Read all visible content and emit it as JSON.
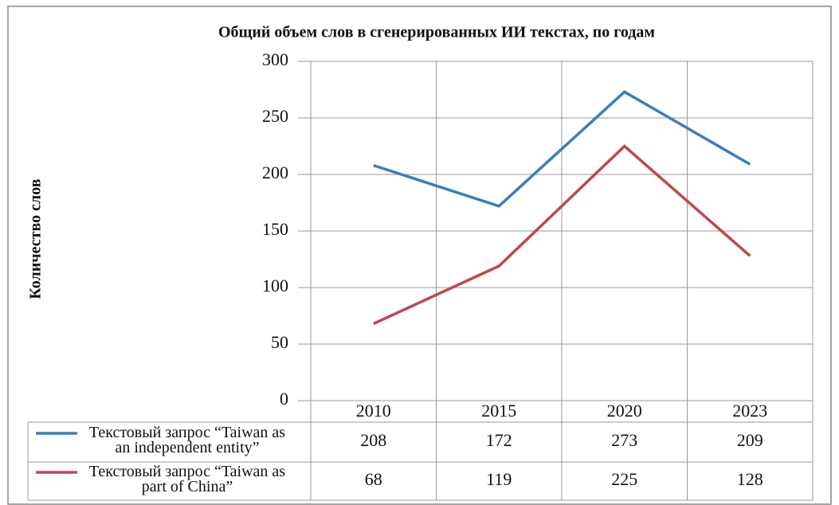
{
  "chart_data": {
    "type": "line",
    "title": "Общий объем слов в сгенерированных ИИ текстах, по годам",
    "y_label": "Количество слов",
    "categories": [
      "2010",
      "2015",
      "2020",
      "2023"
    ],
    "series": [
      {
        "name": "Текстовый запрос “Taiwan as an independent entity”",
        "color": "#3b7dbf",
        "values": [
          208,
          172,
          273,
          209
        ]
      },
      {
        "name": "Текстовый запрос “Taiwan as part of China”",
        "color": "#c0474d",
        "values": [
          68,
          119,
          225,
          128
        ]
      }
    ],
    "ylim": [
      0,
      300
    ],
    "yticks": [
      0,
      50,
      100,
      150,
      200,
      250,
      300
    ],
    "grid": true,
    "data_table": true
  }
}
